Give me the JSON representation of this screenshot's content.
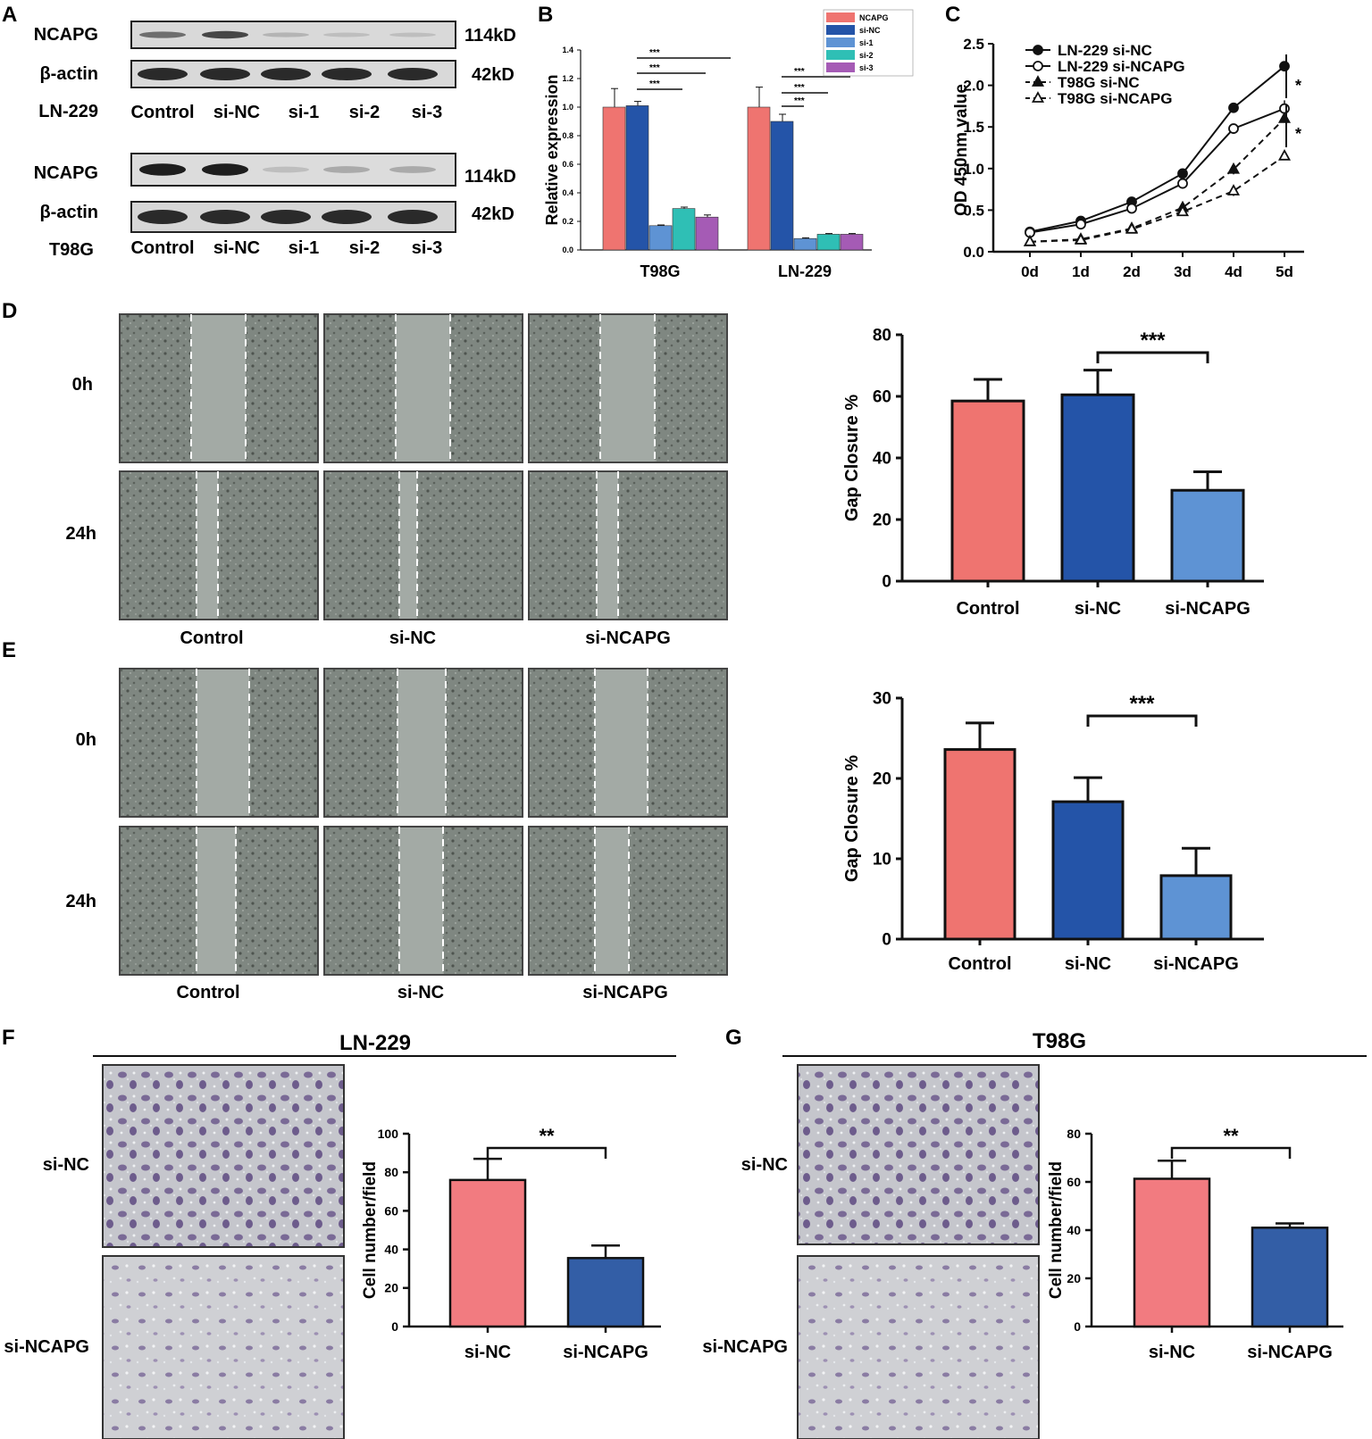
{
  "panels": {
    "A": "A",
    "B": "B",
    "C": "C",
    "D": "D",
    "E": "E",
    "F": "F",
    "G": "G"
  },
  "blot": {
    "ln229": {
      "rows": [
        "NCAPG",
        "β-actin"
      ],
      "kd": [
        "114kD",
        "42kD"
      ],
      "cell": "LN-229",
      "lanes": [
        "Control",
        "si-NC",
        "si-1",
        "si-2",
        "si-3"
      ],
      "ncapg_intensity": [
        0.55,
        0.75,
        0.2,
        0.15,
        0.15
      ]
    },
    "t98g": {
      "rows": [
        "NCAPG",
        "β-actin"
      ],
      "kd": [
        "114kD",
        "42kD"
      ],
      "cell": "T98G",
      "lanes": [
        "Control",
        "si-NC",
        "si-1",
        "si-2",
        "si-3"
      ],
      "ncapg_intensity": [
        0.95,
        0.95,
        0.15,
        0.25,
        0.25
      ]
    }
  },
  "wound": {
    "times": [
      "0h",
      "24h"
    ],
    "groups": [
      "Control",
      "si-NC",
      "si-NCAPG"
    ]
  },
  "transwell": {
    "F_title": "LN-229",
    "G_title": "T98G",
    "rows": [
      "si-NC",
      "si-NCAPG"
    ]
  },
  "colors": {
    "red": "#ef7470",
    "darkblue": "#2454a8",
    "lightblue": "#5e93d4",
    "teal": "#2fbfb5",
    "purple": "#a55bb5",
    "pink": "#f27b80",
    "navy": "#335ea6"
  },
  "chart_data": [
    {
      "panel": "B",
      "type": "bar",
      "categories": [
        "T98G",
        "LN-229"
      ],
      "ylabel": "Relative expression",
      "ylim": [
        0,
        1.4
      ],
      "yticks": [
        "0.0",
        "0.2",
        "0.4",
        "0.6",
        "0.8",
        "1.0",
        "1.2",
        "1.4"
      ],
      "series": [
        {
          "name": "NCAPG",
          "values": [
            1.0,
            1.0
          ],
          "errors": [
            0.13,
            0.14
          ]
        },
        {
          "name": "si-NC",
          "values": [
            1.01,
            0.9
          ],
          "errors": [
            0.03,
            0.05
          ]
        },
        {
          "name": "si-1",
          "values": [
            0.17,
            0.08
          ],
          "errors": [
            0.005,
            0.005
          ]
        },
        {
          "name": "si-2",
          "values": [
            0.29,
            0.11
          ],
          "errors": [
            0.01,
            0.005
          ]
        },
        {
          "name": "si-3",
          "values": [
            0.23,
            0.11
          ],
          "errors": [
            0.015,
            0.005
          ]
        }
      ],
      "annotations": [
        "***",
        "***",
        "***",
        "***",
        "***",
        "***"
      ]
    },
    {
      "panel": "C",
      "type": "line",
      "x": [
        "0d",
        "1d",
        "2d",
        "3d",
        "4d",
        "5d"
      ],
      "ylabel": "OD  450nm value",
      "ylim": [
        0,
        2.5
      ],
      "yticks": [
        "0.0",
        "0.5",
        "1.0",
        "1.5",
        "2.0",
        "2.5"
      ],
      "series": [
        {
          "name": "LN-229 si-NC",
          "values": [
            0.24,
            0.37,
            0.6,
            0.94,
            1.73,
            2.23
          ],
          "errors": [
            0.02,
            0.02,
            0.03,
            0.04,
            0.06,
            0.06
          ]
        },
        {
          "name": "LN-229 si-NCAPG",
          "values": [
            0.23,
            0.33,
            0.52,
            0.82,
            1.48,
            1.72
          ],
          "errors": [
            0.02,
            0.02,
            0.03,
            0.06,
            0.06,
            0.1
          ]
        },
        {
          "name": "T98G si-NC",
          "values": [
            0.12,
            0.15,
            0.28,
            0.53,
            0.99,
            1.6
          ],
          "errors": [
            0.01,
            0.01,
            0.02,
            0.03,
            0.06,
            0.05
          ]
        },
        {
          "name": "T98G si-NCAPG",
          "values": [
            0.12,
            0.14,
            0.27,
            0.48,
            0.73,
            1.15
          ],
          "errors": [
            0.01,
            0.01,
            0.02,
            0.03,
            0.06,
            0.03
          ]
        }
      ],
      "annotations": [
        "*",
        "*"
      ]
    },
    {
      "panel": "D",
      "type": "bar",
      "categories": [
        "Control",
        "si-NC",
        "si-NCAPG"
      ],
      "ylabel": "Gap Closure %",
      "ylim": [
        0,
        80
      ],
      "yticks": [
        "0",
        "20",
        "40",
        "60",
        "80"
      ],
      "values": [
        58.5,
        60.5,
        29.5
      ],
      "errors": [
        7,
        8,
        6
      ],
      "annotation": "***"
    },
    {
      "panel": "E",
      "type": "bar",
      "categories": [
        "Control",
        "si-NC",
        "si-NCAPG"
      ],
      "ylabel": "Gap Closure %",
      "ylim": [
        0,
        30
      ],
      "yticks": [
        "0",
        "10",
        "20",
        "30"
      ],
      "values": [
        23.6,
        17.1,
        7.9
      ],
      "errors": [
        3.3,
        3,
        3.4
      ],
      "annotation": "***"
    },
    {
      "panel": "F",
      "type": "bar",
      "categories": [
        "si-NC",
        "si-NCAPG"
      ],
      "ylabel": "Cell number/field",
      "ylim": [
        0,
        100
      ],
      "yticks": [
        "0",
        "20",
        "40",
        "60",
        "80",
        "100"
      ],
      "values": [
        76,
        35.5
      ],
      "errors": [
        11,
        6.5
      ],
      "annotation": "**"
    },
    {
      "panel": "G",
      "type": "bar",
      "categories": [
        "si-NC",
        "si-NCAPG"
      ],
      "ylabel": "Cell number/field",
      "ylim": [
        0,
        80
      ],
      "yticks": [
        "0",
        "20",
        "40",
        "60",
        "80"
      ],
      "values": [
        61.3,
        41
      ],
      "errors": [
        7.5,
        1.8
      ],
      "annotation": "**"
    }
  ]
}
